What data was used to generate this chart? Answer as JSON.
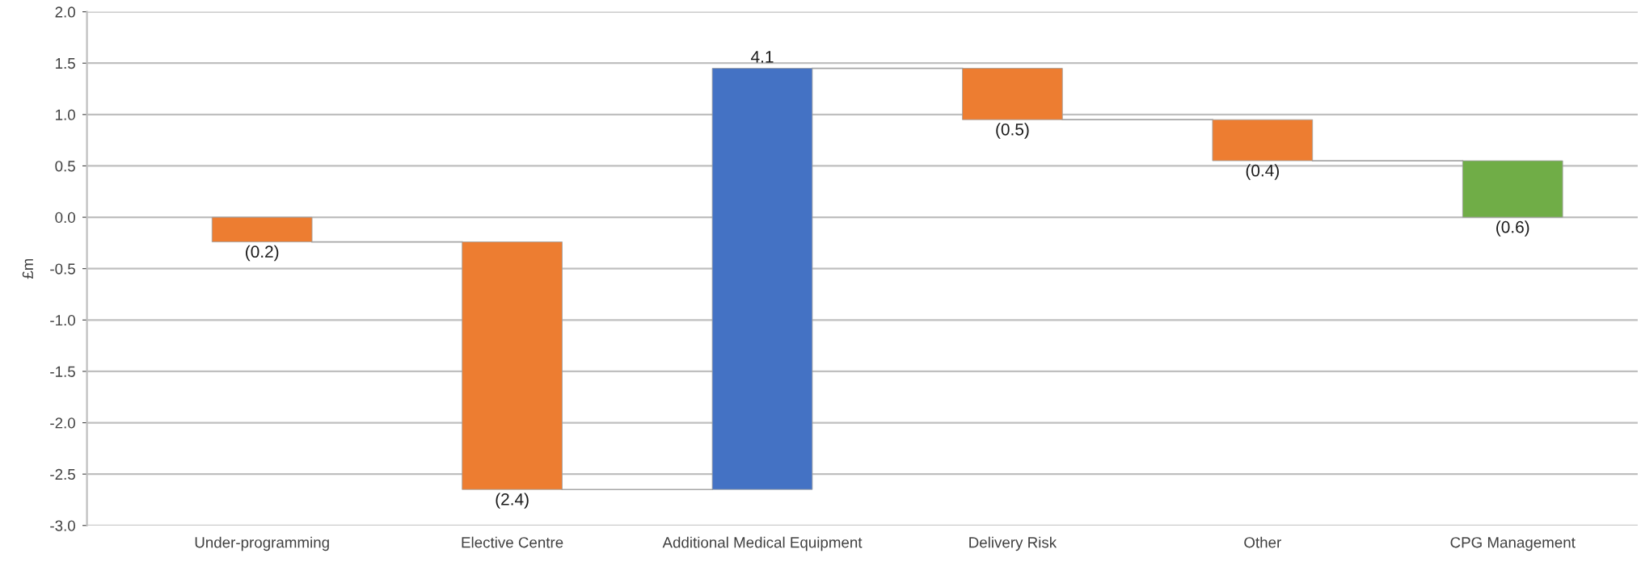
{
  "chart_data": {
    "type": "bar",
    "ylabel": "£m",
    "categories": [
      "Under-programming",
      "Elective Centre",
      "Additional Medical Equipment",
      "Delivery Risk",
      "Other",
      "CPG Management"
    ],
    "values": [
      -0.24,
      -2.41,
      4.1,
      -0.5,
      -0.4,
      -0.55
    ],
    "base": [
      0,
      -0.24,
      -2.65,
      1.45,
      0.95,
      0.55
    ],
    "colors": [
      "#ed7d31",
      "#ed7d31",
      "#4472c4",
      "#ed7d31",
      "#ed7d31",
      "#70ad47"
    ],
    "value_labels": [
      "(0.2)",
      "(2.4)",
      "4.1",
      "(0.5)",
      "(0.4)",
      "(0.6)"
    ],
    "ylim": [
      -3.0,
      2.0
    ],
    "yticks": [
      {
        "value": -3.0,
        "label": "-3.0"
      },
      {
        "value": -2.5,
        "label": "-2.5"
      },
      {
        "value": -2.0,
        "label": "-2.0"
      },
      {
        "value": -1.5,
        "label": "-1.5"
      },
      {
        "value": -1.0,
        "label": "-1.0"
      },
      {
        "value": -0.5,
        "label": "-0.5"
      },
      {
        "value": 0.0,
        "label": "0.0"
      },
      {
        "value": 0.5,
        "label": "0.5"
      },
      {
        "value": 1.0,
        "label": "1.0"
      },
      {
        "value": 1.5,
        "label": "1.5"
      },
      {
        "value": 2.0,
        "label": "2.0"
      }
    ],
    "grid": "y"
  }
}
